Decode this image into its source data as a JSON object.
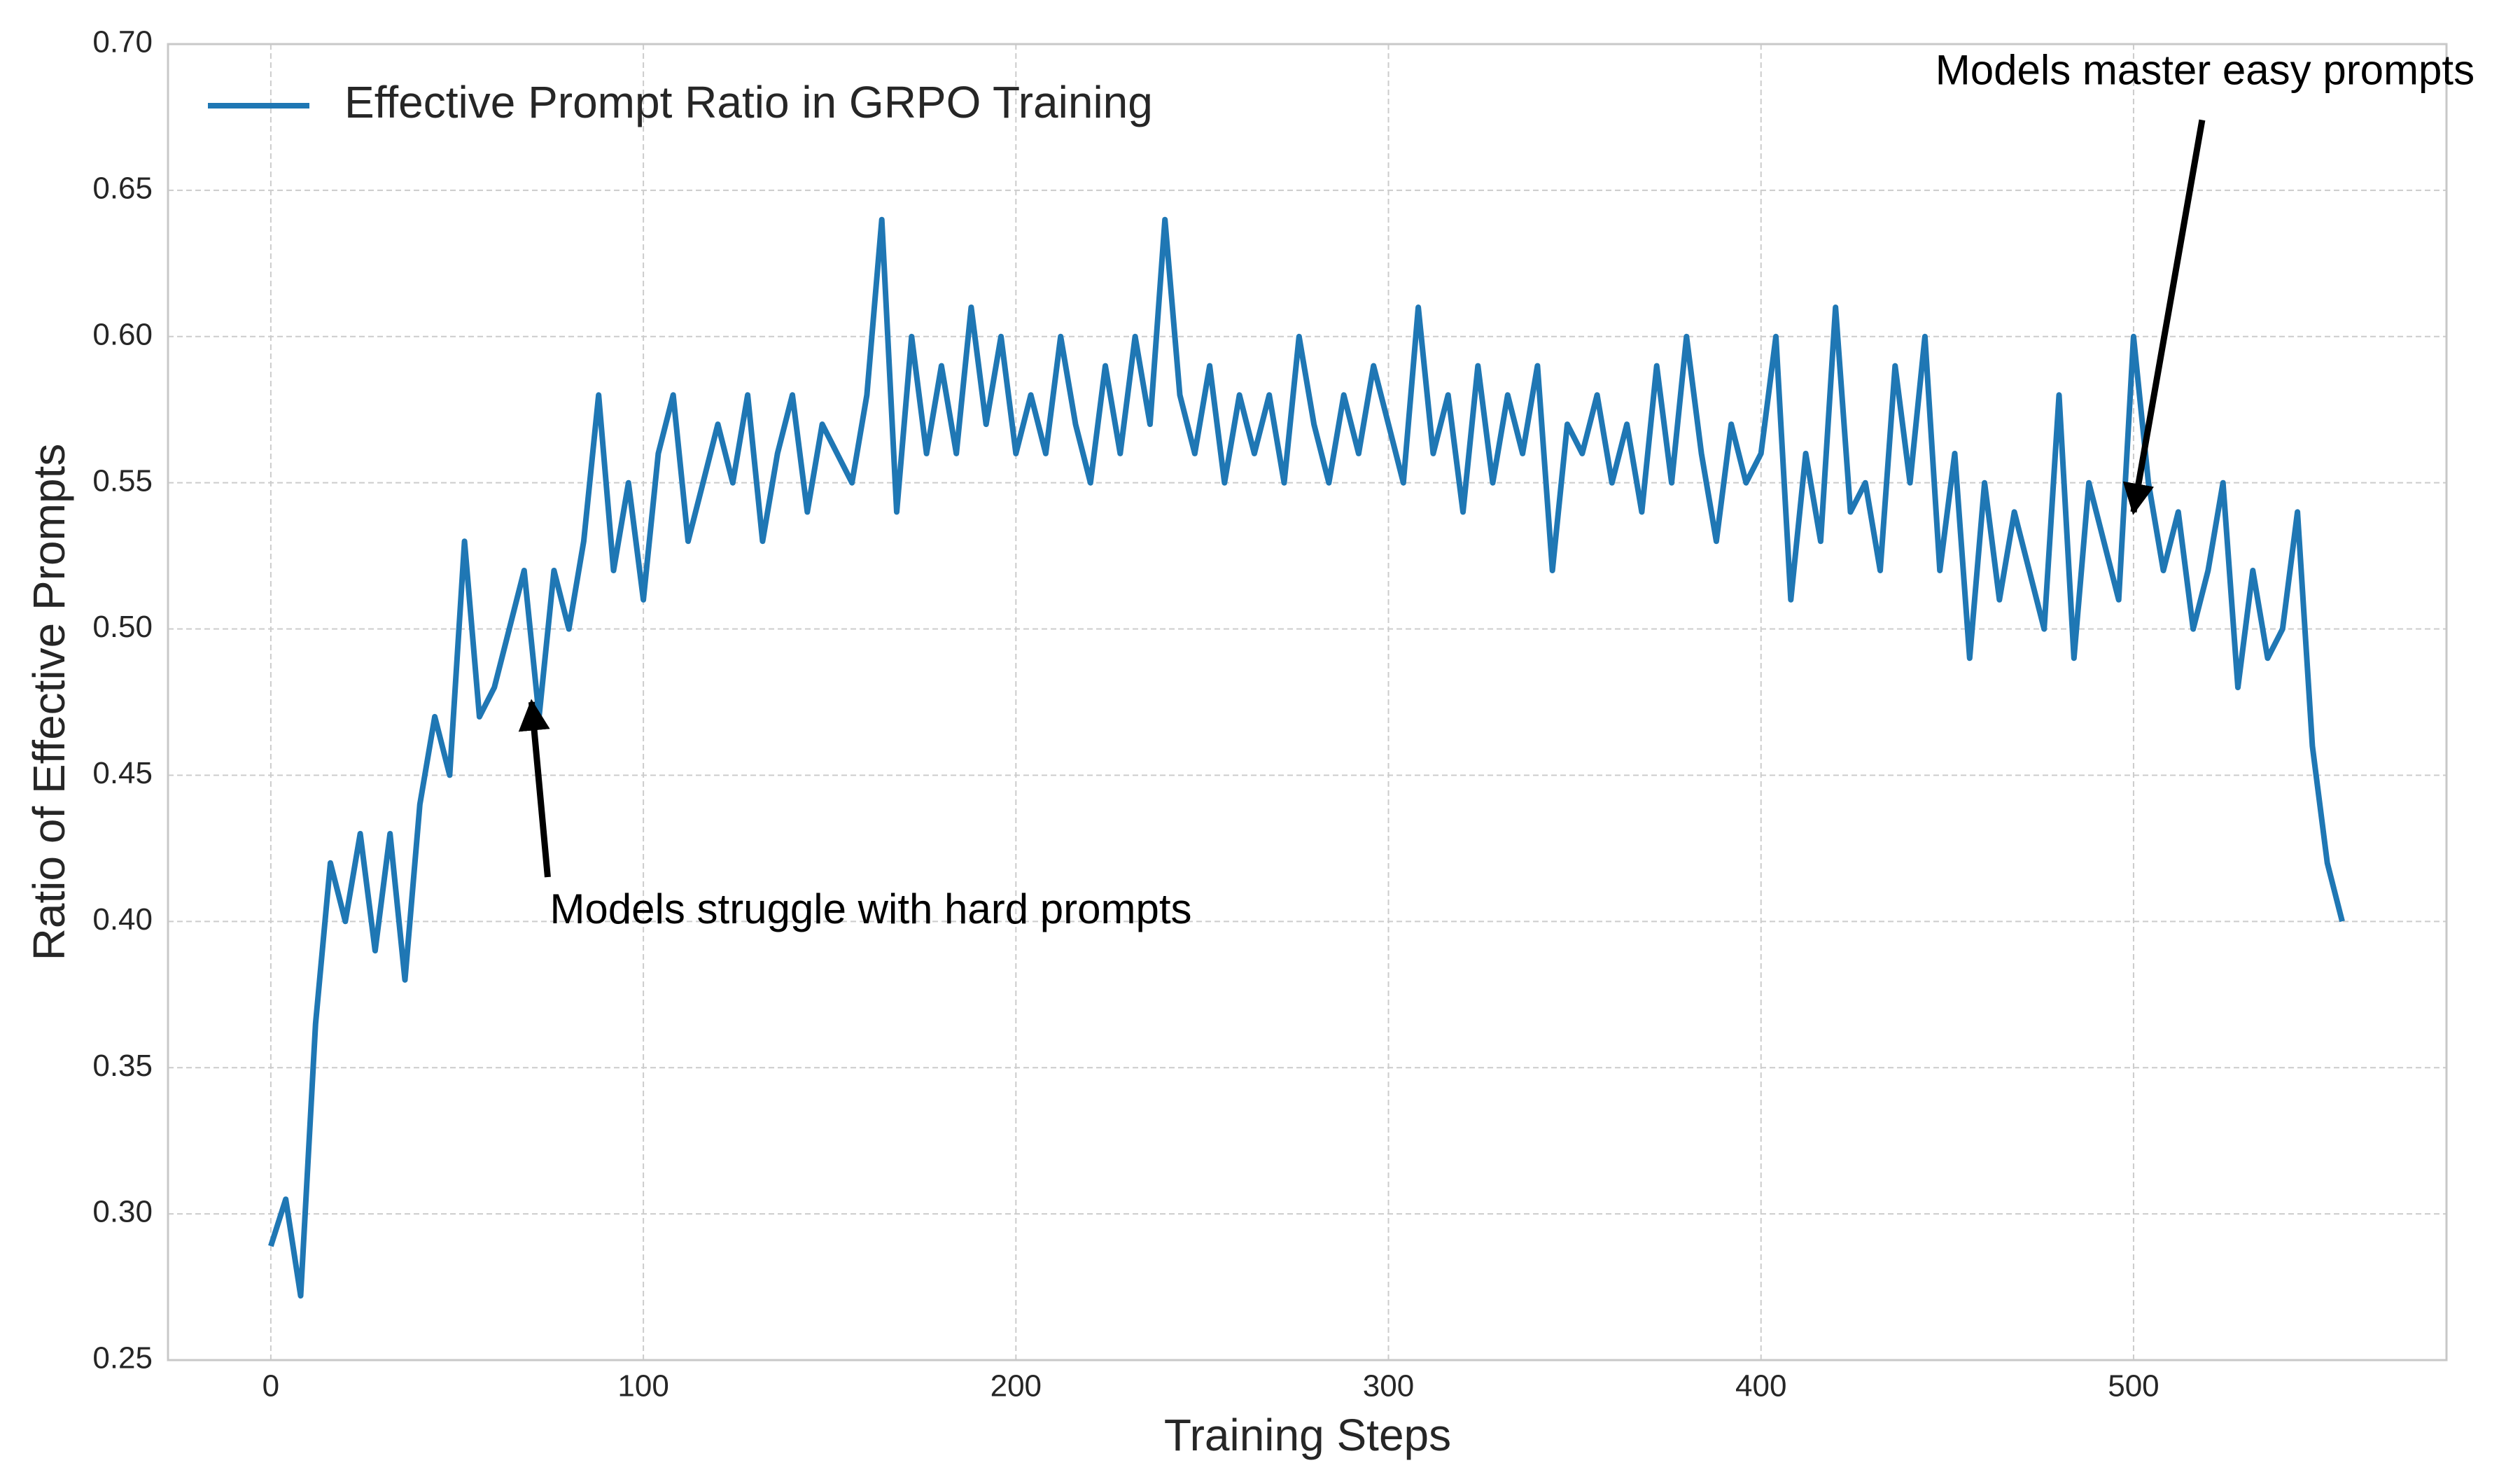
{
  "chart_data": {
    "type": "line",
    "xlabel": "Training Steps",
    "ylabel": "Ratio of Effective Prompts",
    "x": [
      0,
      4,
      8,
      12,
      16,
      20,
      24,
      28,
      32,
      36,
      40,
      44,
      48,
      52,
      56,
      60,
      64,
      68,
      72,
      76,
      80,
      84,
      88,
      92,
      96,
      100,
      104,
      108,
      112,
      116,
      120,
      124,
      128,
      132,
      136,
      140,
      144,
      148,
      152,
      156,
      160,
      164,
      168,
      172,
      176,
      180,
      184,
      188,
      192,
      196,
      200,
      204,
      208,
      212,
      216,
      220,
      224,
      228,
      232,
      236,
      240,
      244,
      248,
      252,
      256,
      260,
      264,
      268,
      272,
      276,
      280,
      284,
      288,
      292,
      296,
      300,
      304,
      308,
      312,
      316,
      320,
      324,
      328,
      332,
      336,
      340,
      344,
      348,
      352,
      356,
      360,
      364,
      368,
      372,
      376,
      380,
      384,
      388,
      392,
      396,
      400,
      404,
      408,
      412,
      416,
      420,
      424,
      428,
      432,
      436,
      440,
      444,
      448,
      452,
      456,
      460,
      464,
      468,
      472,
      476,
      480,
      484,
      488,
      492,
      496,
      500,
      504,
      508,
      512,
      516,
      520,
      524,
      528,
      532,
      536,
      540,
      544,
      548,
      552,
      556
    ],
    "series": [
      {
        "name": "Effective Prompt Ratio in GRPO Training",
        "color": "#1f77b4",
        "values": [
          0.289,
          0.305,
          0.272,
          0.365,
          0.42,
          0.4,
          0.43,
          0.39,
          0.43,
          0.38,
          0.44,
          0.47,
          0.45,
          0.53,
          0.47,
          0.48,
          0.5,
          0.52,
          0.47,
          0.52,
          0.5,
          0.53,
          0.58,
          0.52,
          0.55,
          0.51,
          0.56,
          0.58,
          0.53,
          0.55,
          0.57,
          0.55,
          0.58,
          0.53,
          0.56,
          0.58,
          0.54,
          0.57,
          0.56,
          0.55,
          0.58,
          0.64,
          0.54,
          0.6,
          0.56,
          0.59,
          0.56,
          0.61,
          0.57,
          0.6,
          0.56,
          0.58,
          0.56,
          0.6,
          0.57,
          0.55,
          0.59,
          0.56,
          0.6,
          0.57,
          0.64,
          0.58,
          0.56,
          0.59,
          0.55,
          0.58,
          0.56,
          0.58,
          0.55,
          0.6,
          0.57,
          0.55,
          0.58,
          0.56,
          0.59,
          0.57,
          0.55,
          0.61,
          0.56,
          0.58,
          0.54,
          0.59,
          0.55,
          0.58,
          0.56,
          0.59,
          0.52,
          0.57,
          0.56,
          0.58,
          0.55,
          0.57,
          0.54,
          0.59,
          0.55,
          0.6,
          0.56,
          0.53,
          0.57,
          0.55,
          0.56,
          0.6,
          0.51,
          0.56,
          0.53,
          0.61,
          0.54,
          0.55,
          0.52,
          0.59,
          0.55,
          0.6,
          0.52,
          0.56,
          0.49,
          0.55,
          0.51,
          0.54,
          0.52,
          0.5,
          0.58,
          0.49,
          0.55,
          0.53,
          0.51,
          0.6,
          0.55,
          0.52,
          0.54,
          0.5,
          0.52,
          0.55,
          0.48,
          0.52,
          0.49,
          0.5,
          0.54,
          0.46,
          0.42,
          0.4
        ]
      }
    ],
    "xlim": [
      -27.6,
      584
    ],
    "xticks": [
      0,
      100,
      200,
      300,
      400,
      500
    ],
    "ylim": [
      0.25,
      0.7
    ],
    "yticks": [
      0.25,
      {
        "value": 0.3,
        "label": "0.30"
      },
      0.35,
      {
        "value": 0.4,
        "label": "0.40"
      },
      0.45,
      {
        "value": 0.5,
        "label": "0.50"
      },
      0.55,
      {
        "value": 0.6,
        "label": "0.60"
      },
      0.65,
      {
        "value": 0.7,
        "label": "0.70"
      }
    ],
    "grid": true,
    "legend": "upper left",
    "annotations": [
      {
        "text": "Models struggle with hard prompts",
        "xy": [
          70,
          0.475
        ]
      },
      {
        "text": "Models master easy prompts",
        "xy": [
          500,
          0.54
        ]
      }
    ]
  }
}
